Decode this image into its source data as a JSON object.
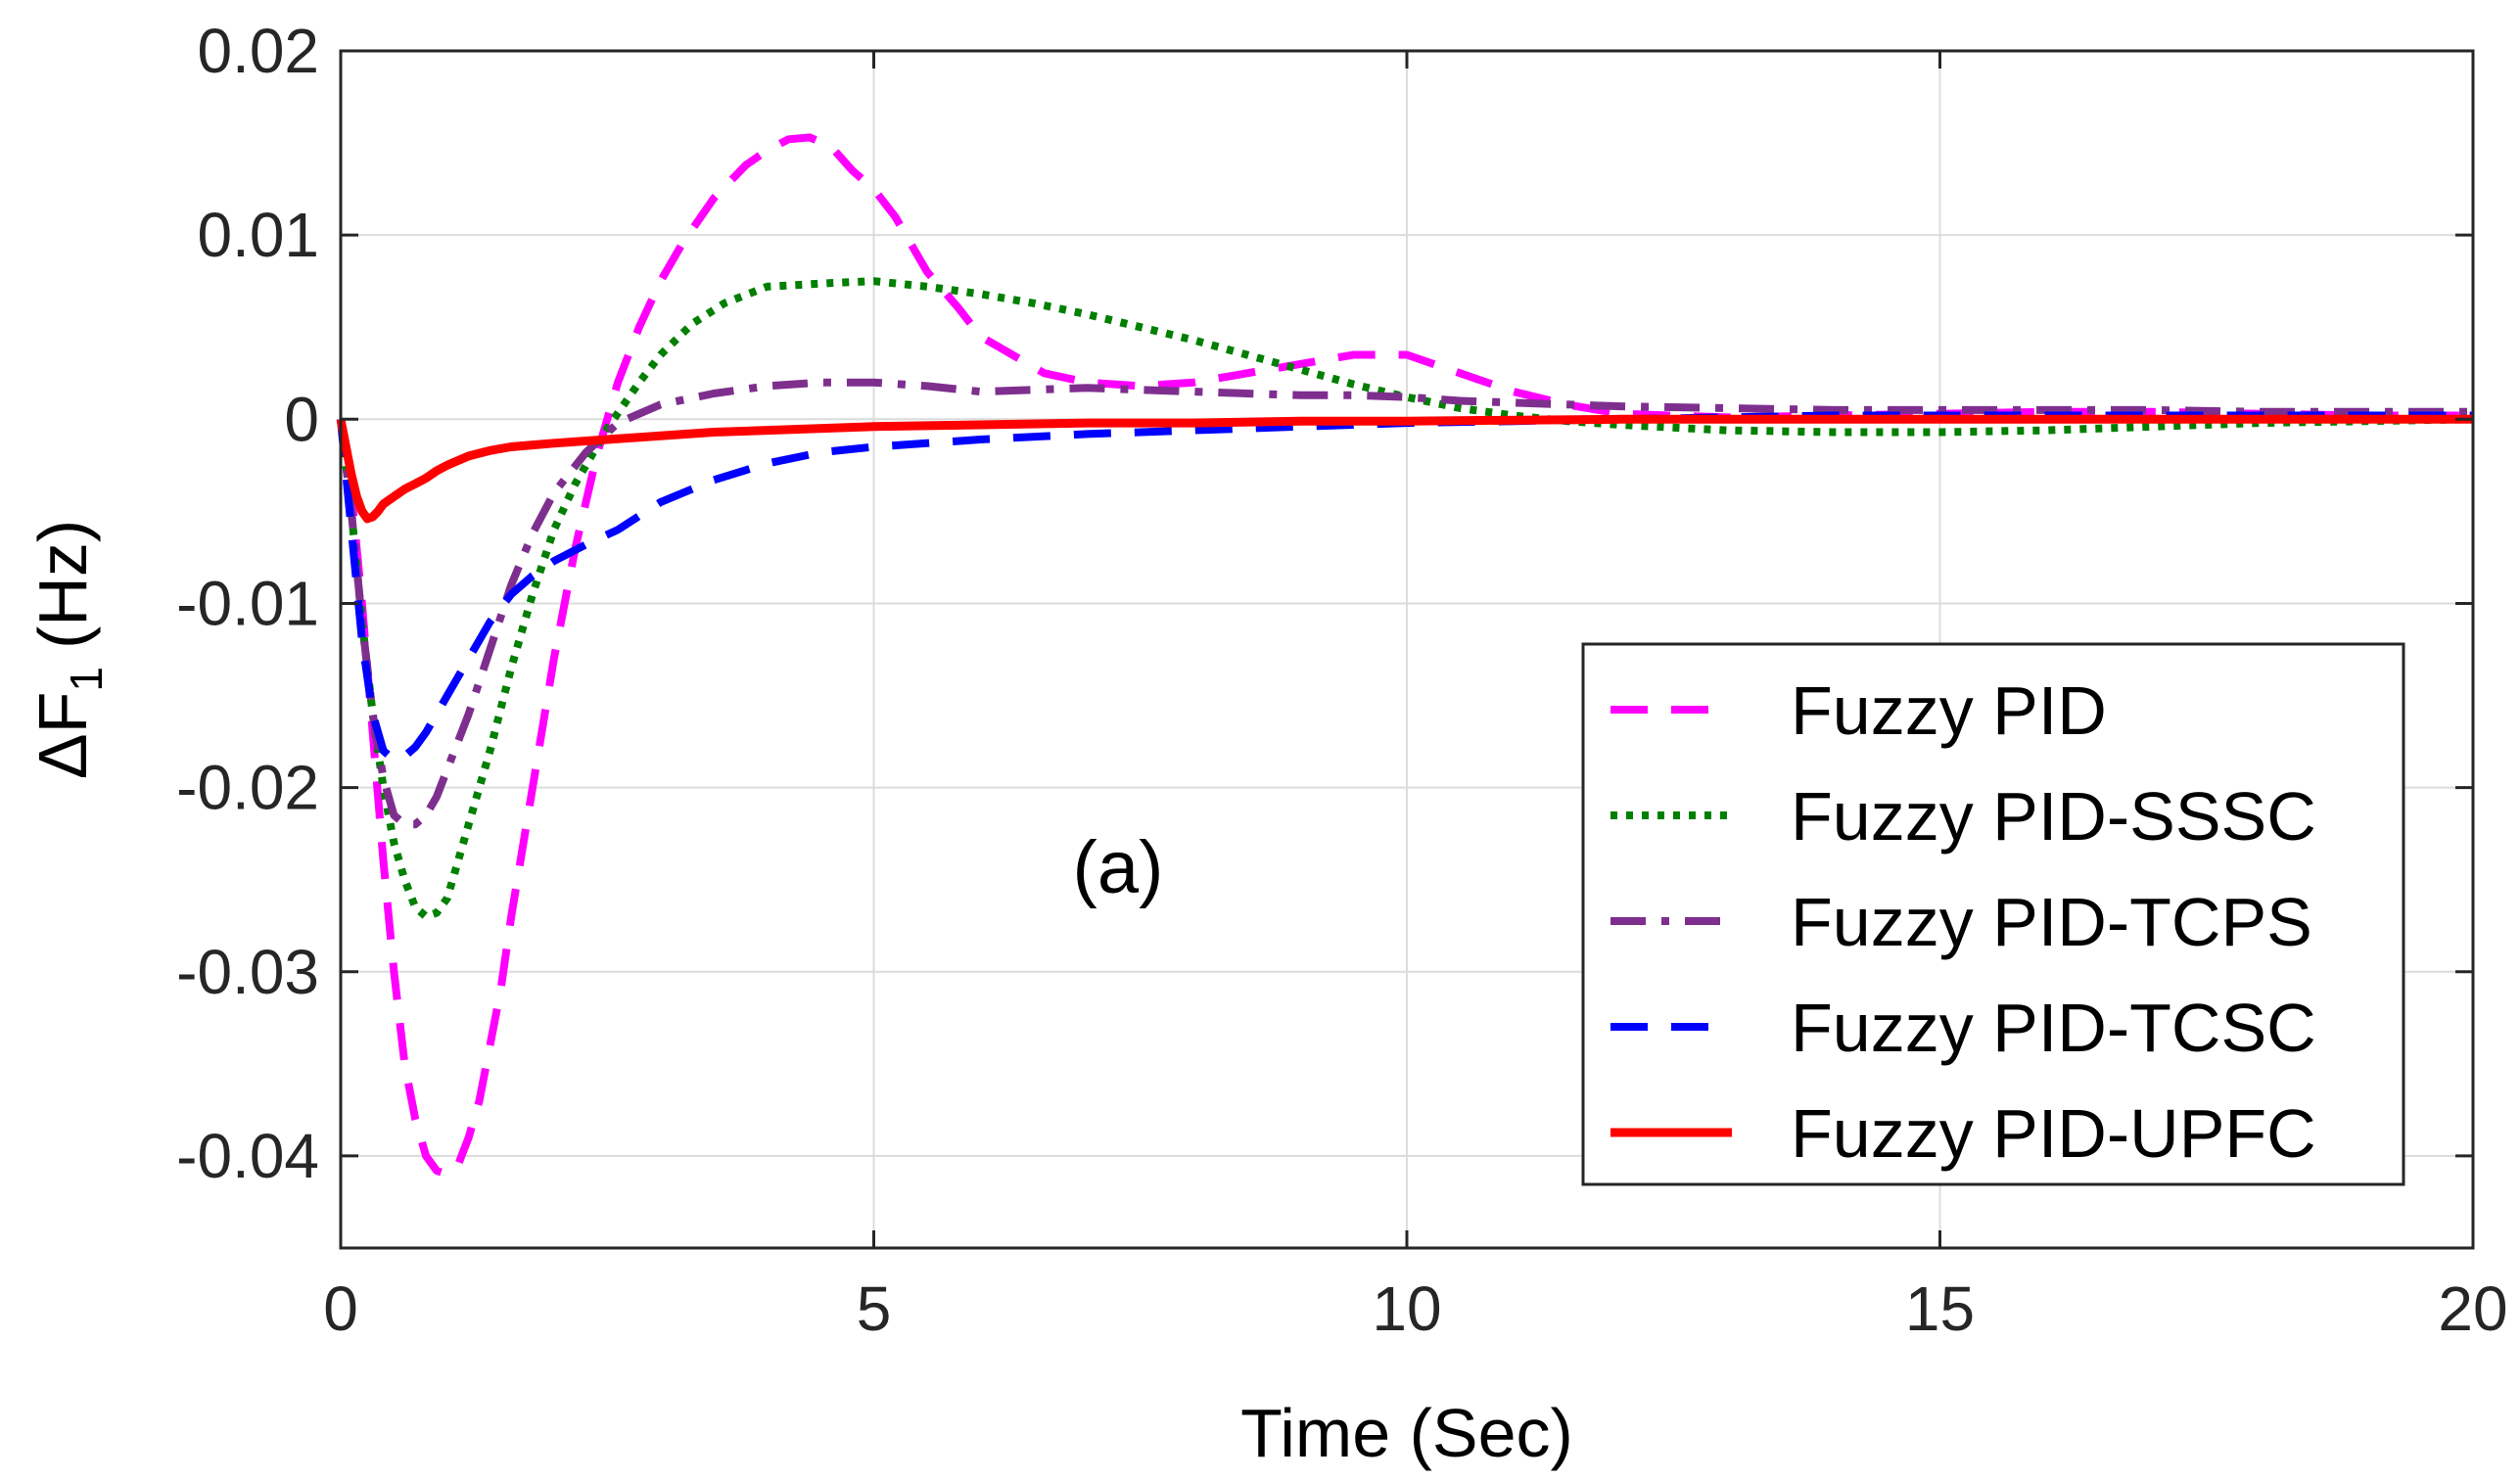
{
  "chart_data": {
    "type": "line",
    "title": "",
    "xlabel": "Time (Sec)",
    "ylabel": {
      "prefix": "ΔF",
      "subscript": "1",
      "suffix": "(Hz)"
    },
    "xlim": [
      0,
      20
    ],
    "ylim": [
      -0.045,
      0.02
    ],
    "xticks": [
      0,
      5,
      10,
      15,
      20
    ],
    "xtick_labels": [
      "0",
      "5",
      "10",
      "15",
      "20"
    ],
    "yticks": [
      0.02,
      0.01,
      0,
      -0.01,
      -0.02,
      -0.03,
      -0.04
    ],
    "ytick_labels": [
      "0.02",
      "0.01",
      "0",
      "-0.01",
      "-0.02",
      "-0.03",
      "-0.04"
    ],
    "grid": true,
    "legend_position": "bottom-right",
    "annotation": "(a)",
    "series": [
      {
        "name": "Fuzzy PID",
        "color": "#FF00FF",
        "style": "dashed",
        "x": [
          0,
          0.1,
          0.2,
          0.3,
          0.4,
          0.5,
          0.6,
          0.7,
          0.8,
          0.9,
          1.0,
          1.1,
          1.2,
          1.3,
          1.4,
          1.5,
          1.6,
          1.8,
          2.0,
          2.2,
          2.4,
          2.6,
          2.8,
          3.0,
          3.2,
          3.5,
          3.8,
          4.0,
          4.2,
          4.4,
          4.6,
          4.8,
          5.0,
          5.2,
          5.5,
          5.8,
          6.0,
          6.3,
          6.6,
          7.0,
          7.5,
          8.0,
          8.5,
          9.0,
          9.5,
          10.0,
          10.5,
          11.0,
          11.5,
          12.0,
          13.0,
          14.0,
          15.0,
          16.0,
          17.0,
          18.0,
          19.0,
          20.0
        ],
        "y": [
          0,
          -0.004,
          -0.01,
          -0.017,
          -0.024,
          -0.03,
          -0.035,
          -0.038,
          -0.04,
          -0.0408,
          -0.041,
          -0.0405,
          -0.039,
          -0.037,
          -0.034,
          -0.031,
          -0.027,
          -0.02,
          -0.013,
          -0.007,
          -0.002,
          0.002,
          0.005,
          0.0075,
          0.0095,
          0.012,
          0.0138,
          0.0146,
          0.0152,
          0.0153,
          0.0148,
          0.0135,
          0.0125,
          0.011,
          0.008,
          0.006,
          0.0045,
          0.0035,
          0.0025,
          0.002,
          0.0018,
          0.002,
          0.0025,
          0.003,
          0.0035,
          0.0035,
          0.0025,
          0.0015,
          0.0008,
          0.0003,
          0.0001,
          0.0002,
          0.0003,
          0.0004,
          0.0004,
          0.0003,
          0.0002,
          0.0002
        ]
      },
      {
        "name": "Fuzzy PID-SSSC",
        "color": "#007F00",
        "style": "dotted",
        "x": [
          0,
          0.1,
          0.2,
          0.3,
          0.4,
          0.5,
          0.6,
          0.7,
          0.8,
          0.9,
          1.0,
          1.1,
          1.2,
          1.4,
          1.6,
          1.8,
          2.0,
          2.2,
          2.5,
          2.8,
          3.0,
          3.3,
          3.6,
          4.0,
          4.3,
          4.6,
          5.0,
          5.5,
          6.0,
          6.5,
          7.0,
          7.5,
          8.0,
          8.5,
          9.0,
          9.5,
          10.0,
          10.5,
          11.0,
          11.5,
          12.0,
          13.0,
          14.0,
          15.0,
          16.0,
          17.0,
          18.0,
          19.0,
          20.0
        ],
        "y": [
          0,
          -0.005,
          -0.011,
          -0.016,
          -0.02,
          -0.023,
          -0.025,
          -0.0265,
          -0.027,
          -0.0268,
          -0.026,
          -0.024,
          -0.022,
          -0.018,
          -0.0135,
          -0.0095,
          -0.006,
          -0.0035,
          -0.0005,
          0.002,
          0.0035,
          0.0052,
          0.0063,
          0.0072,
          0.0073,
          0.0074,
          0.0075,
          0.0072,
          0.0068,
          0.0063,
          0.0057,
          0.005,
          0.0043,
          0.0035,
          0.0027,
          0.0019,
          0.0012,
          0.0006,
          0.0002,
          -0.0001,
          -0.0003,
          -0.0006,
          -0.0007,
          -0.0007,
          -0.0006,
          -0.0004,
          -0.0002,
          -0.0001,
          0
        ]
      },
      {
        "name": "Fuzzy PID-TCPS",
        "color": "#7E2F8E",
        "style": "dashdot",
        "x": [
          0,
          0.1,
          0.2,
          0.3,
          0.4,
          0.5,
          0.6,
          0.7,
          0.8,
          0.9,
          1.0,
          1.2,
          1.4,
          1.6,
          1.8,
          2.0,
          2.3,
          2.6,
          3.0,
          3.5,
          4.0,
          4.5,
          5.0,
          5.5,
          6.0,
          6.5,
          7.0,
          7.5,
          8.0,
          8.5,
          9.0,
          9.5,
          10.0,
          10.5,
          11.0,
          11.5,
          12.0,
          13.0,
          14.0,
          15.0,
          16.0,
          17.0,
          18.0,
          19.0,
          20.0
        ],
        "y": [
          0,
          -0.005,
          -0.011,
          -0.016,
          -0.0195,
          -0.0215,
          -0.022,
          -0.022,
          -0.0215,
          -0.0205,
          -0.019,
          -0.016,
          -0.0125,
          -0.009,
          -0.0062,
          -0.004,
          -0.0018,
          -0.0002,
          0.0008,
          0.0014,
          0.0018,
          0.002,
          0.002,
          0.0018,
          0.0015,
          0.0016,
          0.0017,
          0.0016,
          0.0015,
          0.0014,
          0.0013,
          0.0013,
          0.0012,
          0.001,
          0.0009,
          0.0008,
          0.0007,
          0.0006,
          0.0005,
          0.0005,
          0.0005,
          0.0005,
          0.0004,
          0.0004,
          0.0004
        ]
      },
      {
        "name": "Fuzzy PID-TCSC",
        "color": "#0000FF",
        "style": "dashed",
        "x": [
          0,
          0.1,
          0.2,
          0.3,
          0.4,
          0.5,
          0.6,
          0.7,
          0.8,
          0.9,
          1.0,
          1.2,
          1.4,
          1.6,
          1.8,
          2.0,
          2.3,
          2.6,
          3.0,
          3.5,
          4.0,
          4.5,
          5.0,
          5.5,
          6.0,
          7.0,
          8.0,
          9.0,
          10.0,
          11.0,
          12.0,
          13.0,
          14.0,
          15.0,
          16.0,
          17.0,
          18.0,
          19.0,
          20.0
        ],
        "y": [
          0,
          -0.006,
          -0.012,
          -0.016,
          -0.018,
          -0.0185,
          -0.0183,
          -0.0178,
          -0.017,
          -0.016,
          -0.015,
          -0.013,
          -0.011,
          -0.0095,
          -0.0085,
          -0.0077,
          -0.0068,
          -0.006,
          -0.0045,
          -0.0033,
          -0.0024,
          -0.0018,
          -0.0015,
          -0.0013,
          -0.0011,
          -0.0008,
          -0.0006,
          -0.0004,
          -0.0002,
          -0.0001,
          0,
          0.0001,
          0.0002,
          0.0002,
          0.0002,
          0.0002,
          0.0002,
          0.0002,
          0.0002
        ]
      },
      {
        "name": "Fuzzy PID-UPFC",
        "color": "#FF0000",
        "style": "solid",
        "x": [
          0,
          0.05,
          0.1,
          0.15,
          0.2,
          0.25,
          0.3,
          0.35,
          0.4,
          0.5,
          0.6,
          0.7,
          0.8,
          0.9,
          1.0,
          1.2,
          1.4,
          1.6,
          1.8,
          2.0,
          2.5,
          3.0,
          3.5,
          4.0,
          5.0,
          6.0,
          7.0,
          8.0,
          9.0,
          10.0,
          12.0,
          14.0,
          16.0,
          18.0,
          20.0
        ],
        "y": [
          0,
          -0.0015,
          -0.003,
          -0.0042,
          -0.005,
          -0.0054,
          -0.0053,
          -0.005,
          -0.0046,
          -0.0042,
          -0.0038,
          -0.0035,
          -0.0032,
          -0.0028,
          -0.0025,
          -0.002,
          -0.0017,
          -0.0015,
          -0.0014,
          -0.0013,
          -0.0011,
          -0.0009,
          -0.0007,
          -0.0006,
          -0.0004,
          -0.0003,
          -0.0002,
          -0.0002,
          -0.0001,
          -0.0001,
          0,
          0,
          0,
          0,
          0
        ]
      }
    ]
  }
}
